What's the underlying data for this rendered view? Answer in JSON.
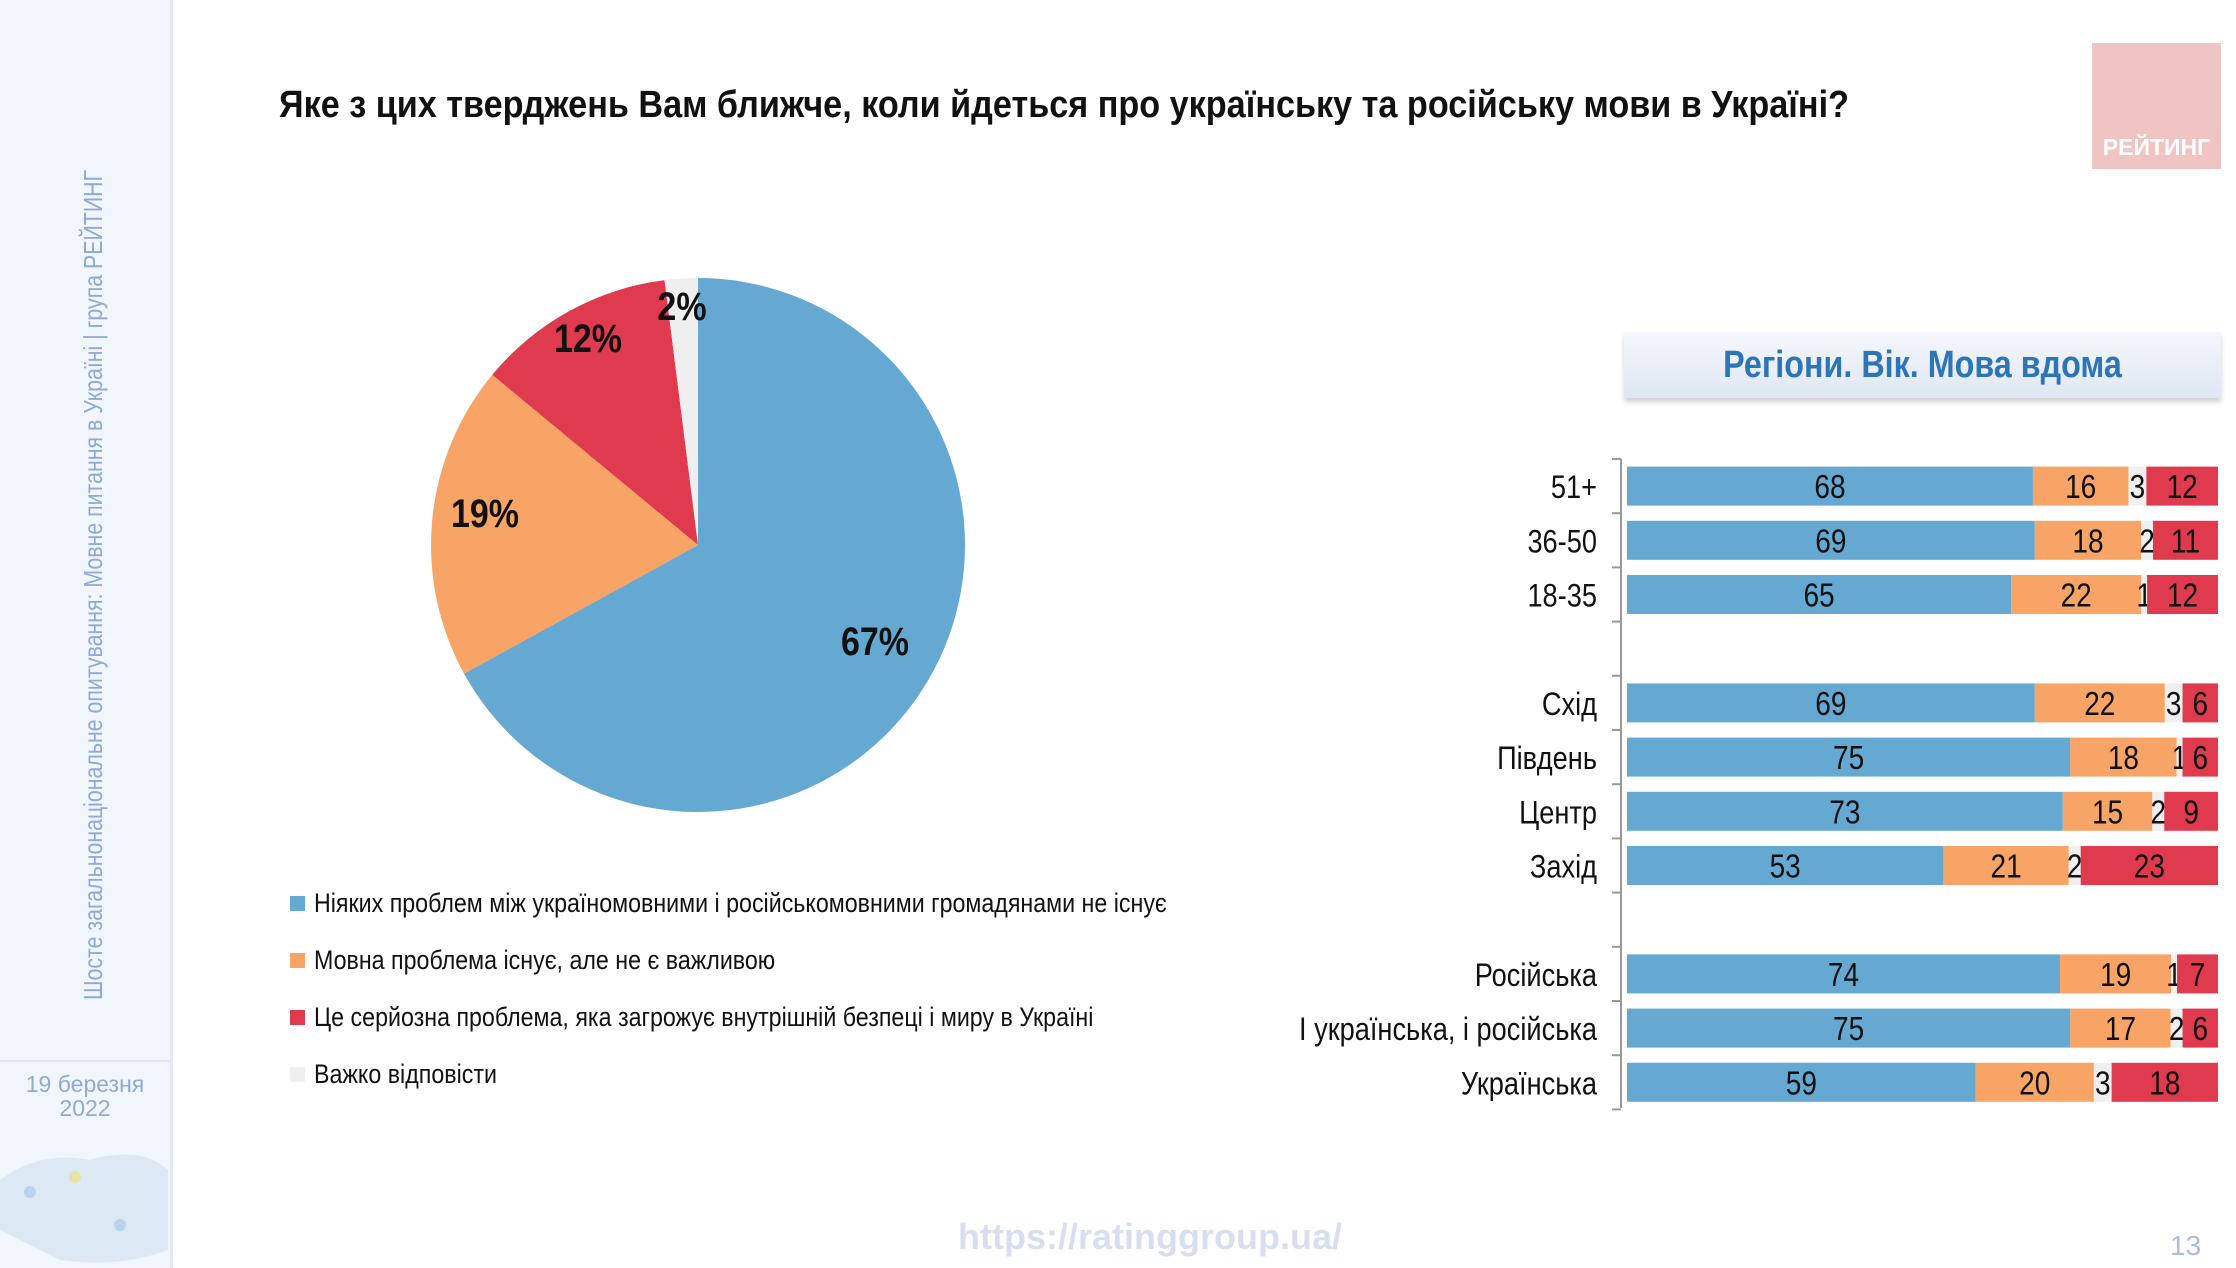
{
  "sidebar": {
    "vertical_text": "Шосте загальнонаціональне опитування: Мовне питання в Україні | група РЕЙТИНГ",
    "date_line1": "19 березня",
    "date_line2": "2022"
  },
  "title": "Яке з цих тверджень Вам ближче, коли йдеться про українську та російську мови в Україні?",
  "logo": "РЕЙТИНГ",
  "footer": {
    "url": "https://ratinggroup.ua/",
    "page": "13"
  },
  "colors": {
    "blue": "#65a9d3",
    "orange": "#f8a466",
    "red": "#e03a4e",
    "gray": "#efefef"
  },
  "chart_data": [
    {
      "type": "pie",
      "slices": [
        {
          "name": "Ніяких проблем між україномовними і російськомовними громадянами не існує",
          "value": 67,
          "label": "67%",
          "color": "#65a9d3"
        },
        {
          "name": "Мовна проблема існує, але не є важливою",
          "value": 19,
          "label": "19%",
          "color": "#f8a466"
        },
        {
          "name": "Це серйозна проблема, яка загрожує внутрішній безпеці і миру в Україні",
          "value": 12,
          "label": "12%",
          "color": "#e03a4e"
        },
        {
          "name": "Важко відповісти",
          "value": 2,
          "label": "2%",
          "color": "#efefef"
        }
      ],
      "legend_placement": "bottom"
    },
    {
      "type": "bar",
      "stacked": true,
      "orientation": "horizontal",
      "title": "Регіони. Вік. Мова вдома",
      "groups": [
        {
          "categories": [
            "51+",
            "36-50",
            "18-35"
          ],
          "values": [
            [
              68,
              16,
              3,
              12
            ],
            [
              69,
              18,
              2,
              11
            ],
            [
              65,
              22,
              1,
              12
            ]
          ]
        },
        {
          "categories": [
            "Схід",
            "Південь",
            "Центр",
            "Захід"
          ],
          "values": [
            [
              69,
              22,
              3,
              6
            ],
            [
              75,
              18,
              1,
              6
            ],
            [
              73,
              15,
              2,
              9
            ],
            [
              53,
              21,
              2,
              23
            ]
          ]
        },
        {
          "categories": [
            "Російська",
            "І українська, і російська",
            "Українська"
          ],
          "values": [
            [
              74,
              19,
              1,
              7
            ],
            [
              75,
              17,
              2,
              6
            ],
            [
              59,
              20,
              3,
              18
            ]
          ]
        }
      ],
      "series_colors": [
        "#65a9d3",
        "#f8a466",
        "#efefef",
        "#e03a4e"
      ],
      "xlim": [
        0,
        100
      ]
    }
  ]
}
